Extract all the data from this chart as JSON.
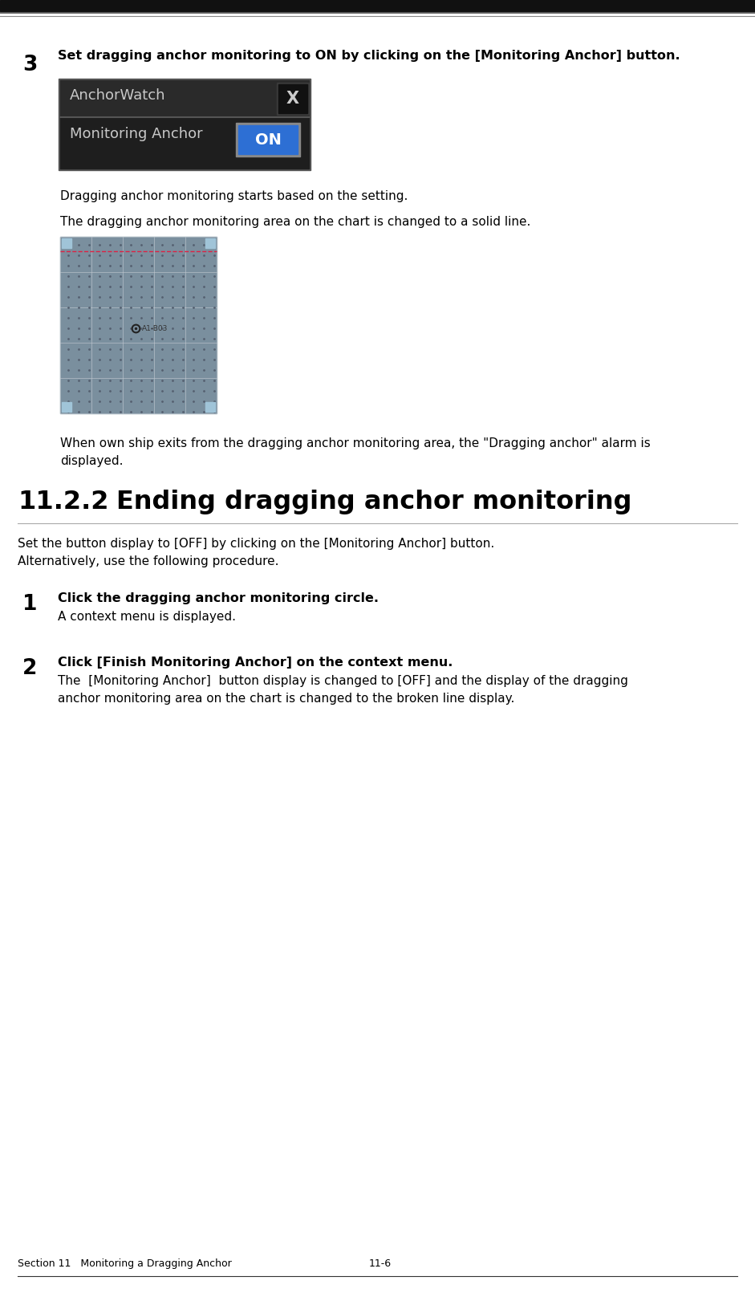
{
  "bg_color": "#ffffff",
  "top_bar_color": "#111111",
  "step3_number": "3",
  "step3_text": "Set dragging anchor monitoring to ON by clicking on the [Monitoring Anchor] button.",
  "anchorwatch_title": "AnchorWatch",
  "anchorwatch_bg": "#252525",
  "anchorwatch_title_color": "#c8c8c8",
  "monitoring_label": "Monitoring Anchor",
  "on_btn_color": "#2d6fd4",
  "on_btn_text": "ON",
  "on_btn_text_color": "#ffffff",
  "text1": "Dragging anchor monitoring starts based on the setting.",
  "text2": "The dragging anchor monitoring area on the chart is changed to a solid line.",
  "text3a": "When own ship exits from the dragging anchor monitoring area, the \"Dragging anchor\" alarm is",
  "text3b": "displayed.",
  "section_header_num": "11.2.2",
  "section_header_text": "Ending dragging anchor monitoring",
  "section_intro1": "Set the button display to [OFF] by clicking on the [Monitoring Anchor] button.",
  "section_intro2": "Alternatively, use the following procedure.",
  "step1_number": "1",
  "step1_bold": "Click the dragging anchor monitoring circle.",
  "step1_text": "A context menu is displayed.",
  "step2_number": "2",
  "step2_bold": "Click [Finish Monitoring Anchor] on the context menu.",
  "step2_text1": "The  [Monitoring Anchor]  button display is changed to [OFF] and the display of the dragging",
  "step2_text2": "anchor monitoring area on the chart is changed to the broken line display.",
  "footer_left": "Section 11   Monitoring a Dragging Anchor",
  "footer_right": "11-6",
  "chart_bg": "#7a8f9e",
  "chart_grid_color": "#6a7f8e",
  "chart_line_color": "#c0c8d0",
  "chart_corner_color": "#a0c4d8",
  "chart_circle_color": "#e0203a",
  "chart_dot_color": "#556070"
}
